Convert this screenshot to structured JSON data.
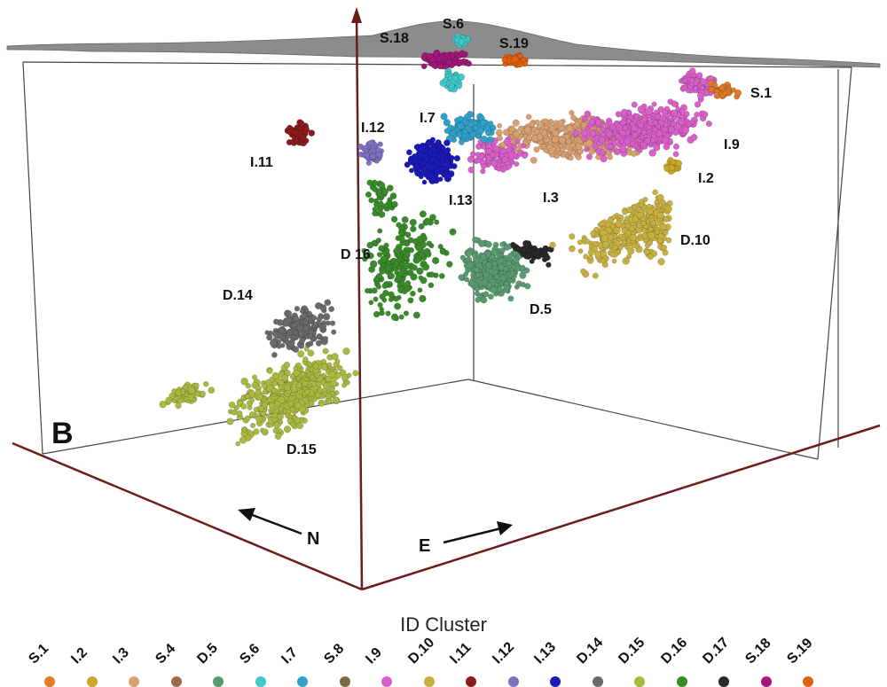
{
  "panel_label": "B",
  "direction_labels": {
    "north": "N",
    "east": "E"
  },
  "legend": {
    "title": "ID Cluster",
    "items": [
      {
        "label": "S.1",
        "color": "#e07b28"
      },
      {
        "label": "I.2",
        "color": "#c8a828"
      },
      {
        "label": "I.3",
        "color": "#d8a070"
      },
      {
        "label": "S.4",
        "color": "#9b6a48"
      },
      {
        "label": "D.5",
        "color": "#5a9a70"
      },
      {
        "label": "S.6",
        "color": "#40c8c8"
      },
      {
        "label": "I.7",
        "color": "#30a0c8"
      },
      {
        "label": "S.8",
        "color": "#7a6a40"
      },
      {
        "label": "I.9",
        "color": "#d860c8"
      },
      {
        "label": "D.10",
        "color": "#c8b040"
      },
      {
        "label": "I.11",
        "color": "#8a1c1c"
      },
      {
        "label": "I.12",
        "color": "#8070c0"
      },
      {
        "label": "I.13",
        "color": "#1a1ab8"
      },
      {
        "label": "D.14",
        "color": "#6a6a6a"
      },
      {
        "label": "D.15",
        "color": "#a8b840"
      },
      {
        "label": "D.16",
        "color": "#3a8a2a"
      },
      {
        "label": "D.17",
        "color": "#2a2a2a"
      },
      {
        "label": "S.18",
        "color": "#a01878"
      },
      {
        "label": "S.19",
        "color": "#e06010"
      }
    ]
  },
  "cluster_labels": [
    {
      "text": "S.6"
    },
    {
      "text": "S.18"
    },
    {
      "text": "S.19"
    },
    {
      "text": "S.1"
    },
    {
      "text": "I.7"
    },
    {
      "text": "I.12"
    },
    {
      "text": "I.9"
    },
    {
      "text": "I.11"
    },
    {
      "text": "I.2"
    },
    {
      "text": "I.13"
    },
    {
      "text": "I.3"
    },
    {
      "text": "D.10"
    },
    {
      "text": "D 16"
    },
    {
      "text": "D.14"
    },
    {
      "text": "D.5"
    },
    {
      "text": "D.15"
    }
  ]
}
